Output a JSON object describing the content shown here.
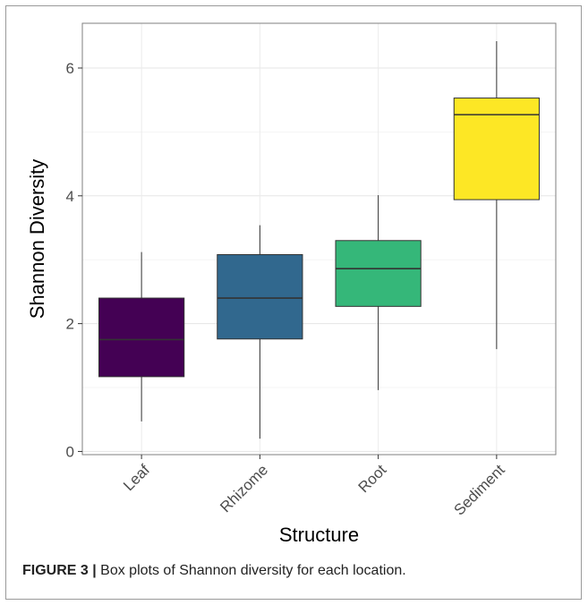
{
  "chart_data": {
    "type": "box",
    "title": "",
    "xlabel": "Structure",
    "ylabel": "Shannon Diversity",
    "ylim": [
      -0.05,
      6.7
    ],
    "yticks": [
      0,
      2,
      4,
      6
    ],
    "grid": true,
    "categories": [
      "Leaf",
      "Rhizome",
      "Root",
      "Sediment"
    ],
    "boxes": [
      {
        "category": "Leaf",
        "min": 0.47,
        "q1": 1.17,
        "median": 1.75,
        "q3": 2.4,
        "max": 3.12,
        "color": "#440154"
      },
      {
        "category": "Rhizome",
        "min": 0.2,
        "q1": 1.76,
        "median": 2.4,
        "q3": 3.08,
        "max": 3.54,
        "color": "#31688e"
      },
      {
        "category": "Root",
        "min": 0.96,
        "q1": 2.27,
        "median": 2.86,
        "q3": 3.3,
        "max": 4.01,
        "color": "#35b779"
      },
      {
        "category": "Sediment",
        "min": 1.6,
        "q1": 3.94,
        "median": 5.27,
        "q3": 5.53,
        "max": 6.42,
        "color": "#fde725"
      }
    ]
  },
  "caption": {
    "label": "FIGURE 3 |",
    "text": " Box plots of Shannon diversity for each location."
  }
}
